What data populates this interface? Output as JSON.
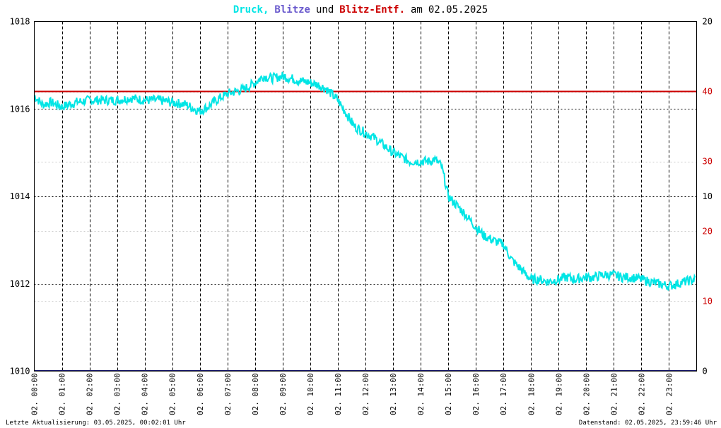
{
  "title": {
    "druck": "Druck,",
    "blitze": "Blitze",
    "und": "und",
    "entf": "Blitz-Entf.",
    "am": "am",
    "date": "02.05.2025"
  },
  "colors": {
    "druck": "#00e5e5",
    "blitze": "#6a5acd",
    "entf": "#cc0000",
    "text": "#000000",
    "zero_line": "#1a1a6e"
  },
  "footer": {
    "left": "Letzte Aktualisierung: 03.05.2025, 00:02:01 Uhr",
    "right": "Datenstand: 02.05.2025, 23:59:46 Uhr"
  },
  "chart_data": {
    "type": "line",
    "left_axis": {
      "min": 1010,
      "max": 1018,
      "ticks": [
        "1010",
        "1012",
        "1014",
        "1016",
        "1018"
      ]
    },
    "right_axis_black": {
      "ticks": [
        {
          "label": "0",
          "at": 1010
        },
        {
          "label": "10",
          "at": 1014
        },
        {
          "label": "20",
          "at": 1018
        }
      ]
    },
    "right_axis_red": {
      "ticks": [
        {
          "label": "10",
          "at": 1011.6
        },
        {
          "label": "20",
          "at": 1013.2
        },
        {
          "label": "30",
          "at": 1014.8
        },
        {
          "label": "40",
          "at": 1016.4
        }
      ]
    },
    "x_ticks": [
      "02. 00:00",
      "02. 01:00",
      "02. 02:00",
      "02. 03:00",
      "02. 04:00",
      "02. 05:00",
      "02. 06:00",
      "02. 07:00",
      "02. 08:00",
      "02. 09:00",
      "02. 10:00",
      "02. 11:00",
      "02. 12:00",
      "02. 13:00",
      "02. 14:00",
      "02. 15:00",
      "02. 16:00",
      "02. 17:00",
      "02. 18:00",
      "02. 19:00",
      "02. 20:00",
      "02. 21:00",
      "02. 22:00",
      "02. 23:00"
    ],
    "x_hours": [
      0,
      24
    ],
    "series": [
      {
        "name": "Druck",
        "x": [
          0,
          0.3,
          0.6,
          1,
          1.5,
          2,
          2.5,
          3,
          3.5,
          4,
          4.5,
          5,
          5.5,
          5.8,
          6,
          6.3,
          6.6,
          7,
          7.3,
          7.6,
          8,
          8.3,
          8.6,
          9,
          9.3,
          9.6,
          10,
          10.3,
          10.6,
          11,
          11.3,
          11.6,
          12,
          12.3,
          12.6,
          13,
          13.3,
          13.6,
          14,
          14.3,
          14.5,
          14.75,
          14.9,
          15,
          15.3,
          15.6,
          16,
          16.3,
          16.6,
          17,
          17.3,
          17.6,
          18,
          18.3,
          18.6,
          19,
          19.3,
          19.6,
          20,
          20.3,
          20.6,
          21,
          21.3,
          21.6,
          22,
          22.3,
          22.6,
          23,
          23.3,
          23.6,
          23.95
        ],
        "y": [
          1016.3,
          1016.1,
          1016.15,
          1016.05,
          1016.15,
          1016.2,
          1016.2,
          1016.2,
          1016.25,
          1016.2,
          1016.2,
          1016.15,
          1016.1,
          1016.0,
          1015.95,
          1016.05,
          1016.2,
          1016.35,
          1016.4,
          1016.45,
          1016.6,
          1016.75,
          1016.7,
          1016.75,
          1016.7,
          1016.65,
          1016.6,
          1016.55,
          1016.45,
          1016.2,
          1015.9,
          1015.6,
          1015.45,
          1015.35,
          1015.2,
          1015.0,
          1014.9,
          1014.8,
          1014.8,
          1014.8,
          1014.85,
          1014.7,
          1014.3,
          1014.0,
          1013.8,
          1013.6,
          1013.3,
          1013.1,
          1013.0,
          1012.9,
          1012.55,
          1012.35,
          1012.1,
          1012.1,
          1012.05,
          1012.1,
          1012.15,
          1012.1,
          1012.15,
          1012.15,
          1012.2,
          1012.2,
          1012.15,
          1012.15,
          1012.1,
          1012.05,
          1012.0,
          1011.95,
          1012.0,
          1012.05,
          1012.1
        ]
      }
    ],
    "reference_lines": [
      {
        "name": "Blitz-Entf.",
        "value": 1016.4
      },
      {
        "name": "Blitze",
        "value": 1010
      }
    ],
    "grid": true
  }
}
